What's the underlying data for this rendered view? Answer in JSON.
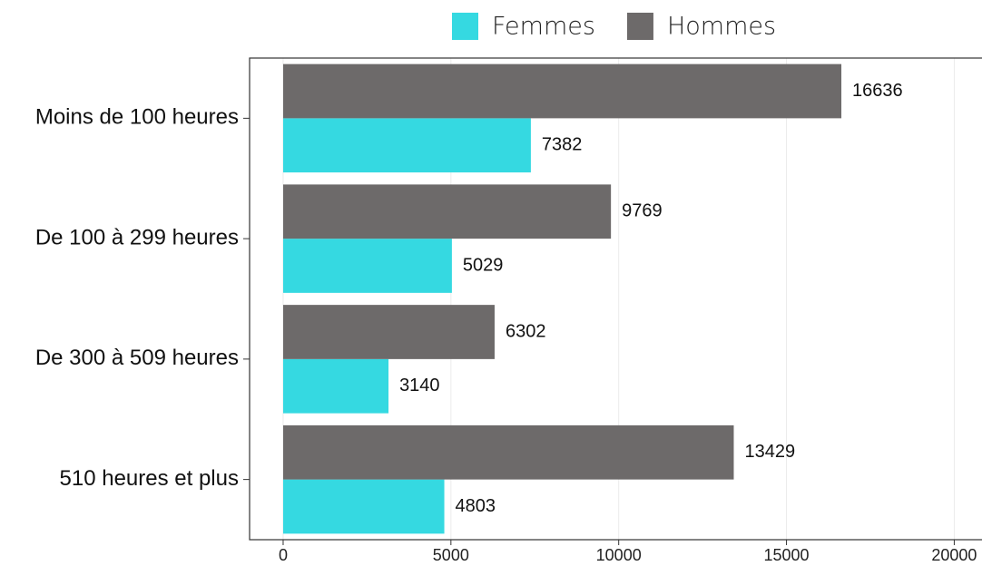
{
  "chart_data": {
    "type": "bar",
    "orientation": "horizontal",
    "categories": [
      "Moins de 100 heures",
      "De 100 à 299 heures",
      "De 300 à 509 heures",
      "510 heures et plus"
    ],
    "series": [
      {
        "name": "Femmes",
        "color": "#35d9e1",
        "values": [
          7382,
          5029,
          3140,
          4803
        ]
      },
      {
        "name": "Hommes",
        "color": "#6d6a6a",
        "values": [
          16636,
          9769,
          6302,
          13429
        ]
      }
    ],
    "xlim": [
      -1000,
      20800
    ],
    "xticks": [
      0,
      5000,
      10000,
      15000,
      20000
    ],
    "grid": true,
    "legend": "top"
  }
}
